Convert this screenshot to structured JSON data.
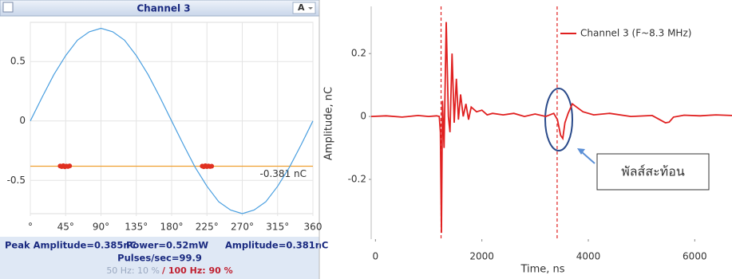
{
  "chart_data": [
    {
      "type": "line",
      "title": "Channel 3",
      "selector": "A",
      "unit_label": "nC",
      "xlim": [
        0,
        360
      ],
      "ylim": [
        -0.78,
        0.83
      ],
      "grid": true,
      "xticks": [
        {
          "value": 0,
          "label": "°"
        },
        {
          "value": 45,
          "label": "45°"
        },
        {
          "value": 90,
          "label": "90°"
        },
        {
          "value": 135,
          "label": "135°"
        },
        {
          "value": 180,
          "label": "180°"
        },
        {
          "value": 225,
          "label": "225°"
        },
        {
          "value": 270,
          "label": "270°"
        },
        {
          "value": 315,
          "label": "315°"
        },
        {
          "value": 360,
          "label": "360"
        }
      ],
      "yticks": [
        0.5,
        0,
        -0.5
      ],
      "series": [
        {
          "color": "#4a9fe0",
          "x": [
            0,
            15,
            30,
            45,
            60,
            75,
            90,
            105,
            120,
            135,
            150,
            165,
            180,
            195,
            210,
            225,
            240,
            255,
            270,
            285,
            300,
            315,
            330,
            345,
            360
          ],
          "values": [
            0,
            0.2,
            0.39,
            0.55,
            0.68,
            0.75,
            0.78,
            0.75,
            0.68,
            0.55,
            0.39,
            0.2,
            0,
            -0.2,
            -0.39,
            -0.55,
            -0.68,
            -0.75,
            -0.78,
            -0.75,
            -0.68,
            -0.55,
            -0.39,
            -0.2,
            0
          ]
        },
        {
          "type": "scatter",
          "color": "#e03020",
          "x": [
            38,
            40,
            42,
            44,
            46,
            48,
            50,
            219,
            221,
            223,
            225,
            227,
            229,
            231
          ],
          "values": [
            -0.379,
            -0.384,
            -0.377,
            -0.386,
            -0.38,
            -0.383,
            -0.378,
            -0.38,
            -0.385,
            -0.377,
            -0.384,
            -0.379,
            -0.383,
            -0.381
          ]
        }
      ],
      "threshold": {
        "value": -0.381,
        "label": "-0.381 nC",
        "color": "#f0a030"
      },
      "stats": [
        "Peak Amplitude=0.385nC",
        "Power=0.52mW",
        "Amplitude=0.381nC"
      ],
      "pulses": "Pulses/sec=99.9",
      "freq_ratio": [
        "50 Hz: 10 %",
        "/ 100 Hz: 90 %"
      ]
    },
    {
      "type": "line",
      "x_label": "Time, ns",
      "y_label": "Amplitude, nC",
      "xlim": [
        -80,
        6700
      ],
      "ylim": [
        -0.39,
        0.35
      ],
      "grid": false,
      "legend": "upper right",
      "xticks": [
        0,
        2000,
        4000,
        6000
      ],
      "yticks": [
        0.2,
        0,
        -0.2
      ],
      "series": [
        {
          "name": "Channel 3 (F~8.3 MHz)",
          "color": "#e02020",
          "x": [
            -80,
            200,
            500,
            800,
            1000,
            1150,
            1200,
            1220,
            1240,
            1260,
            1290,
            1330,
            1370,
            1400,
            1440,
            1480,
            1520,
            1560,
            1600,
            1650,
            1700,
            1750,
            1800,
            1900,
            2000,
            2100,
            2200,
            2400,
            2600,
            2800,
            3000,
            3200,
            3350,
            3420,
            3480,
            3520,
            3560,
            3620,
            3700,
            3780,
            3900,
            4100,
            4400,
            4800,
            5200,
            5450,
            5520,
            5600,
            5800,
            6100,
            6400,
            6700
          ],
          "values": [
            0,
            0.002,
            -0.002,
            0.003,
            0,
            0.002,
            0,
            -0.05,
            -0.37,
            0.05,
            -0.1,
            0.3,
            0,
            -0.05,
            0.2,
            -0.02,
            0.12,
            -0.01,
            0.07,
            0,
            0.04,
            -0.01,
            0.03,
            0.015,
            0.02,
            0.005,
            0.01,
            0.005,
            0.01,
            0,
            0.008,
            0,
            0.01,
            -0.01,
            -0.06,
            -0.07,
            -0.02,
            0.01,
            0.04,
            0.03,
            0.015,
            0.005,
            0.01,
            0,
            0.003,
            -0.02,
            -0.018,
            -0.002,
            0.004,
            0.002,
            0.005,
            0.003
          ]
        }
      ],
      "markers": [
        1233,
        3414
      ],
      "marker_color": "#e02020",
      "annotation": "พัลส์สะท้อน"
    }
  ]
}
